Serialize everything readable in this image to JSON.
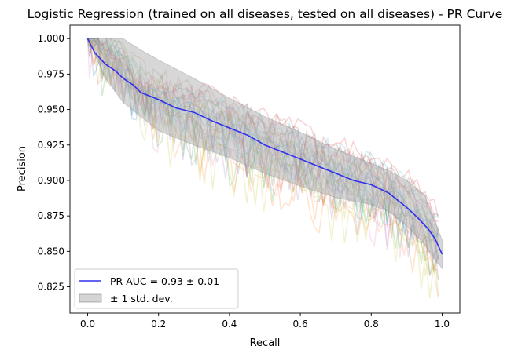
{
  "chart_data": {
    "type": "line",
    "title": "Logistic Regression (trained on all diseases, tested on all diseases) -  PR Curve",
    "xlabel": "Recall",
    "ylabel": "Precision",
    "xlim": [
      -0.05,
      1.05
    ],
    "ylim": [
      0.8065,
      1.0095
    ],
    "x_ticks": [
      0.0,
      0.2,
      0.4,
      0.6,
      0.8,
      1.0
    ],
    "x_tick_labels": [
      "0.0",
      "0.2",
      "0.4",
      "0.6",
      "0.8",
      "1.0"
    ],
    "y_ticks": [
      0.825,
      0.85,
      0.875,
      0.9,
      0.925,
      0.95,
      0.975,
      1.0
    ],
    "y_tick_labels": [
      "0.825",
      "0.850",
      "0.875",
      "0.900",
      "0.925",
      "0.950",
      "0.975",
      "1.000"
    ],
    "grid": false,
    "legend_position": "lower-left",
    "legend": [
      {
        "label": "PR AUC = 0.93 ± 0.01",
        "kind": "line",
        "color": "#3030ee"
      },
      {
        "label": "± 1 std. dev.",
        "kind": "patch",
        "color": "#b0b0b0"
      }
    ],
    "mean_curve": {
      "name": "PR AUC = 0.93 ± 0.01",
      "color": "#3030ee",
      "x": [
        0.0,
        0.02,
        0.05,
        0.08,
        0.1,
        0.13,
        0.15,
        0.2,
        0.25,
        0.3,
        0.35,
        0.4,
        0.45,
        0.5,
        0.55,
        0.6,
        0.65,
        0.7,
        0.75,
        0.8,
        0.85,
        0.9,
        0.93,
        0.96,
        0.98,
        1.0
      ],
      "y": [
        1.0,
        0.99,
        0.982,
        0.977,
        0.972,
        0.967,
        0.962,
        0.957,
        0.951,
        0.948,
        0.942,
        0.937,
        0.932,
        0.925,
        0.92,
        0.915,
        0.91,
        0.905,
        0.9,
        0.897,
        0.891,
        0.881,
        0.874,
        0.866,
        0.859,
        0.848
      ]
    },
    "std_band": {
      "name": "± 1 std. dev.",
      "color": "#b0b0b0",
      "x": [
        0.0,
        0.05,
        0.1,
        0.15,
        0.2,
        0.3,
        0.4,
        0.5,
        0.6,
        0.7,
        0.8,
        0.85,
        0.9,
        0.95,
        1.0
      ],
      "upper": [
        1.0,
        1.0,
        1.0,
        0.992,
        0.985,
        0.972,
        0.958,
        0.945,
        0.934,
        0.922,
        0.912,
        0.907,
        0.9,
        0.89,
        0.858
      ],
      "lower": [
        1.0,
        0.972,
        0.955,
        0.945,
        0.935,
        0.925,
        0.916,
        0.905,
        0.896,
        0.888,
        0.883,
        0.878,
        0.868,
        0.855,
        0.838
      ]
    },
    "fold_curves_note": "many faint individual fold PR curves behind the mean",
    "fold_curve_colors": [
      "#1f77b4",
      "#ff7f0e",
      "#2ca02c",
      "#d62728",
      "#9467bd",
      "#8c564b",
      "#e377c2",
      "#7f7f7f",
      "#bcbd22",
      "#17becf"
    ]
  },
  "ui": {
    "title": "Logistic Regression (trained on all diseases, tested on all diseases) -  PR Curve",
    "xlabel": "Recall",
    "ylabel": "Precision",
    "legend_line": "PR AUC = 0.93 ± 0.01",
    "legend_patch": "± 1 std. dev."
  }
}
